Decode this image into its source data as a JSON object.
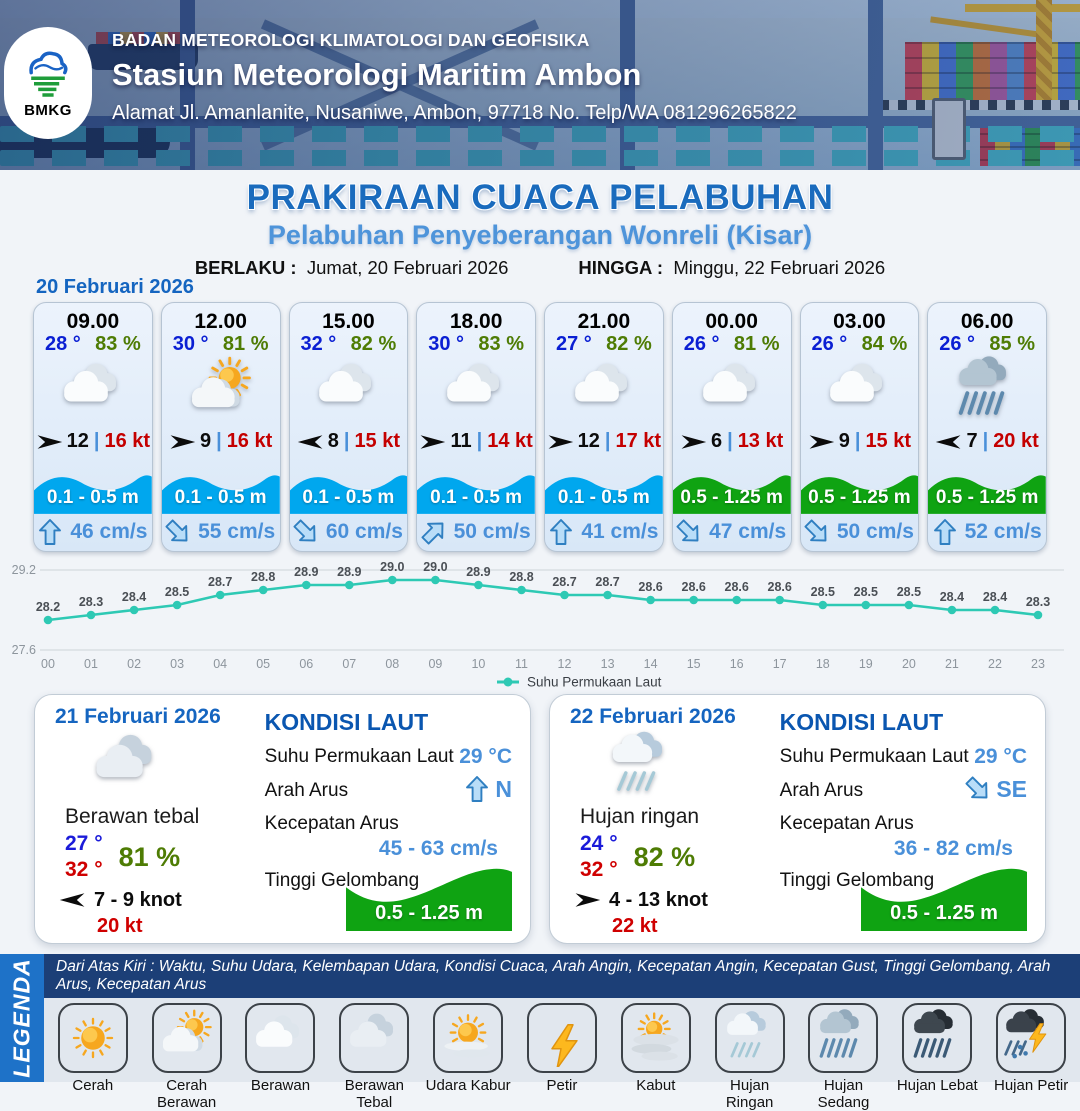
{
  "header": {
    "org": "BADAN METEOROLOGI KLIMATOLOGI DAN GEOFISIKA",
    "station": "Stasiun Meteorologi Maritim Ambon",
    "address": "Alamat Jl. Amanlanite, Nusaniwe, Ambon, 97718   No. Telp/WA  081296265822",
    "logo": "BMKG"
  },
  "title": {
    "main": "PRAKIRAAN CUACA PELABUHAN",
    "subtitle": "Pelabuhan Penyeberangan Wonreli (Kisar)",
    "berlaku_label": "BERLAKU :",
    "berlaku_value": "Jumat, 20 Februari 2026",
    "hingga_label": "HINGGA :",
    "hingga_value": "Minggu, 22 Februari 2026"
  },
  "ui": {
    "pipe": "|"
  },
  "day1": {
    "date": "20 Februari 2026",
    "cards": [
      {
        "time": "09.00",
        "temp": "28 °",
        "humidity": "83 %",
        "icon": "berawan",
        "wind_rot": 0,
        "wind": "12",
        "gust": "16 kt",
        "wave": "0.1 - 0.5 m",
        "wave_color": "#00a7ee",
        "current_rot": 0,
        "current": "46 cm/s"
      },
      {
        "time": "12.00",
        "temp": "30 °",
        "humidity": "81 %",
        "icon": "cerah-berawan",
        "wind_rot": 0,
        "wind": "9",
        "gust": "16 kt",
        "wave": "0.1 - 0.5 m",
        "wave_color": "#00a7ee",
        "current_rot": 135,
        "current": "55 cm/s"
      },
      {
        "time": "15.00",
        "temp": "32 °",
        "humidity": "82 %",
        "icon": "berawan",
        "wind_rot": 180,
        "wind": "8",
        "gust": "15 kt",
        "wave": "0.1 - 0.5 m",
        "wave_color": "#00a7ee",
        "current_rot": 135,
        "current": "60 cm/s"
      },
      {
        "time": "18.00",
        "temp": "30 °",
        "humidity": "83 %",
        "icon": "berawan",
        "wind_rot": 0,
        "wind": "11",
        "gust": "14 kt",
        "wave": "0.1 - 0.5 m",
        "wave_color": "#00a7ee",
        "current_rot": 45,
        "current": "50 cm/s"
      },
      {
        "time": "21.00",
        "temp": "27 °",
        "humidity": "82 %",
        "icon": "berawan",
        "wind_rot": 0,
        "wind": "12",
        "gust": "17 kt",
        "wave": "0.1 - 0.5 m",
        "wave_color": "#00a7ee",
        "current_rot": 0,
        "current": "41 cm/s"
      },
      {
        "time": "00.00",
        "temp": "26 °",
        "humidity": "81 %",
        "icon": "berawan",
        "wind_rot": 0,
        "wind": "6",
        "gust": "13 kt",
        "wave": "0.5 - 1.25 m",
        "wave_color": "#0fa312",
        "current_rot": 135,
        "current": "47 cm/s"
      },
      {
        "time": "03.00",
        "temp": "26 °",
        "humidity": "84 %",
        "icon": "berawan",
        "wind_rot": 0,
        "wind": "9",
        "gust": "15 kt",
        "wave": "0.5 - 1.25 m",
        "wave_color": "#0fa312",
        "current_rot": 135,
        "current": "50 cm/s"
      },
      {
        "time": "06.00",
        "temp": "26 °",
        "humidity": "85 %",
        "icon": "hujan-sedang",
        "wind_rot": 180,
        "wind": "7",
        "gust": "20 kt",
        "wave": "0.5 - 1.25 m",
        "wave_color": "#0fa312",
        "current_rot": 0,
        "current": "52 cm/s"
      }
    ]
  },
  "chart_data": {
    "type": "line",
    "title": "",
    "x": [
      "00",
      "01",
      "02",
      "03",
      "04",
      "05",
      "06",
      "07",
      "08",
      "09",
      "10",
      "11",
      "12",
      "13",
      "14",
      "15",
      "16",
      "17",
      "18",
      "19",
      "20",
      "21",
      "22",
      "23"
    ],
    "series": [
      {
        "name": "Suhu Permukaan Laut",
        "values": [
          28.2,
          28.3,
          28.4,
          28.5,
          28.7,
          28.8,
          28.9,
          28.9,
          29.0,
          29.0,
          28.9,
          28.8,
          28.7,
          28.7,
          28.6,
          28.6,
          28.6,
          28.6,
          28.5,
          28.5,
          28.5,
          28.4,
          28.4,
          28.3
        ]
      }
    ],
    "ylim": [
      27.6,
      29.2
    ],
    "yticks": [
      "29.2",
      "27.6"
    ],
    "line_color": "#2ec9b4",
    "grid": true,
    "legend_position": "bottom"
  },
  "day2": {
    "date": "21 Februari 2026",
    "icon": "berawan-tebal",
    "condition": "Berawan tebal",
    "temp_min": "27 °",
    "temp_max": "32 °",
    "humidity": "81 %",
    "wind_rot": 180,
    "wind_range": "7  - 9 knot",
    "gust": "20 kt",
    "sea": {
      "heading": "KONDISI LAUT",
      "sst_label": "Suhu Permukaan Laut",
      "sst": "29 °C",
      "dir_label": "Arah Arus",
      "dir": "N",
      "dir_rot": 0,
      "speed_label": "Kecepatan Arus",
      "speed": "45 - 63 cm/s",
      "wave_label": "Tinggi Gelombang",
      "wave": "0.5 - 1.25 m",
      "wave_color": "#0fa312"
    }
  },
  "day3": {
    "date": "22 Februari 2026",
    "icon": "hujan-ringan",
    "condition": "Hujan ringan",
    "temp_min": "24 °",
    "temp_max": "32 °",
    "humidity": "82 %",
    "wind_rot": 0,
    "wind_range": "4  - 13 knot",
    "gust": "22 kt",
    "sea": {
      "heading": "KONDISI LAUT",
      "sst_label": "Suhu Permukaan Laut",
      "sst": "29 °C",
      "dir_label": "Arah Arus",
      "dir": "SE",
      "dir_rot": 135,
      "speed_label": "Kecepatan Arus",
      "speed": "36 - 82 cm/s",
      "wave_label": "Tinggi Gelombang",
      "wave": "0.5 - 1.25 m",
      "wave_color": "#0fa312"
    }
  },
  "legend": {
    "title": "LEGENDA",
    "note": "Dari Atas Kiri : Waktu, Suhu Udara, Kelembapan Udara, Kondisi Cuaca, Arah Angin, Kecepatan Angin, Kecepatan Gust, Tinggi Gelombang, Arah Arus, Kecepatan Arus",
    "items": [
      {
        "icon": "cerah",
        "label": "Cerah"
      },
      {
        "icon": "cerah-berawan",
        "label": "Cerah Berawan"
      },
      {
        "icon": "berawan",
        "label": "Berawan"
      },
      {
        "icon": "berawan-tebal",
        "label": "Berawan Tebal"
      },
      {
        "icon": "udara-kabur",
        "label": "Udara Kabur"
      },
      {
        "icon": "petir",
        "label": "Petir"
      },
      {
        "icon": "kabut",
        "label": "Kabut"
      },
      {
        "icon": "hujan-ringan",
        "label": "Hujan Ringan"
      },
      {
        "icon": "hujan-sedang",
        "label": "Hujan Sedang"
      },
      {
        "icon": "hujan-lebat",
        "label": "Hujan Lebat"
      },
      {
        "icon": "hujan-petir",
        "label": "Hujan Petir"
      }
    ]
  }
}
